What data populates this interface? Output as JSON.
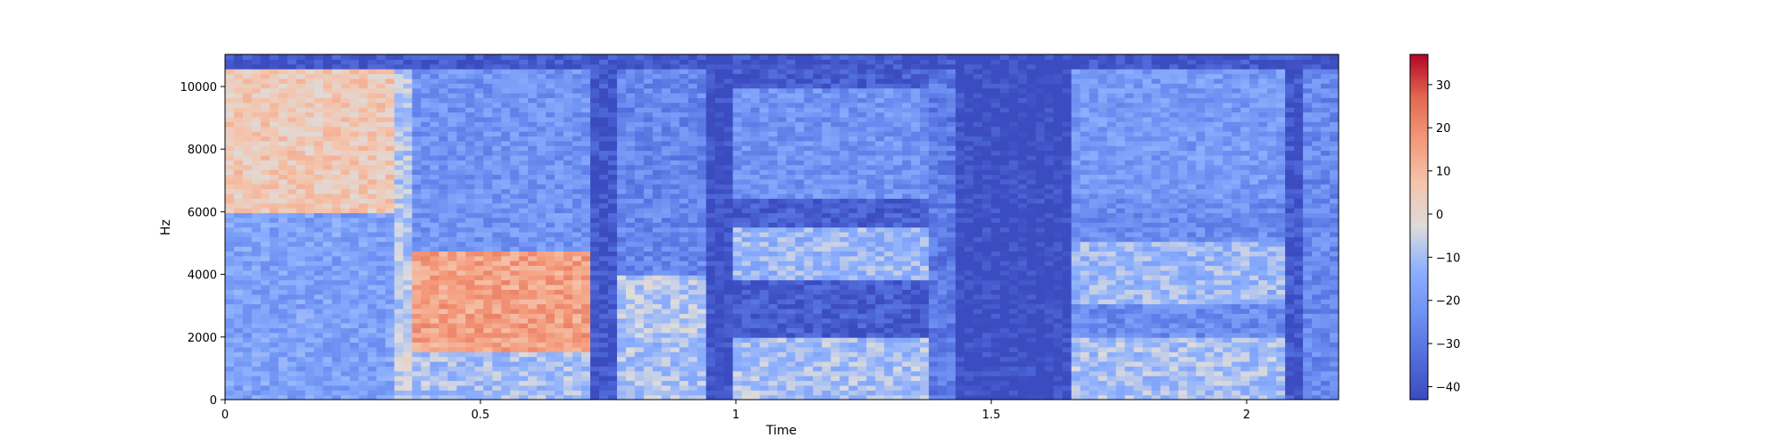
{
  "chart_data": {
    "type": "heatmap",
    "subtype": "spectrogram",
    "title": "",
    "xlabel": "Time",
    "ylabel": "Hz",
    "xlim": [
      0,
      2.18
    ],
    "ylim": [
      0,
      11025
    ],
    "x_ticks": [
      0,
      0.5,
      1,
      1.5,
      2
    ],
    "x_tick_labels": [
      "0",
      "0.5",
      "1",
      "1.5",
      "2"
    ],
    "y_ticks": [
      0,
      2000,
      4000,
      6000,
      8000,
      10000
    ],
    "y_tick_labels": [
      "0",
      "2000",
      "4000",
      "6000",
      "8000",
      "10000"
    ],
    "colorbar": {
      "colormap": "coolwarm",
      "range": [
        -43,
        37
      ],
      "ticks": [
        -40,
        -30,
        -20,
        -10,
        0,
        10,
        20,
        30
      ],
      "tick_labels": [
        "−40",
        "−30",
        "−20",
        "−10",
        "0",
        "10",
        "20",
        "30"
      ]
    },
    "grid": false,
    "segments": [
      {
        "t_start": 0.0,
        "t_end": 0.33,
        "level_db": -18,
        "low_band_level_db": -30,
        "high_band_hz": [
          6000,
          10500
        ],
        "high_band_level_db": 5
      },
      {
        "t_start": 0.33,
        "t_end": 0.37,
        "level_db": -8,
        "low_band_level_db": -5
      },
      {
        "t_start": 0.37,
        "t_end": 0.72,
        "level_db": -22,
        "mid_band_hz": [
          1500,
          4800
        ],
        "mid_band_level_db": 15,
        "harmonics": true
      },
      {
        "t_start": 0.72,
        "t_end": 0.76,
        "level_db": -40
      },
      {
        "t_start": 0.76,
        "t_end": 0.95,
        "level_db": -26,
        "mid_band_hz": [
          2000,
          4000
        ],
        "mid_band_level_db": -8,
        "harmonics": true
      },
      {
        "t_start": 0.95,
        "t_end": 1.0,
        "level_db": -42
      },
      {
        "t_start": 1.0,
        "t_end": 1.37,
        "level_db": -38,
        "mid_band_hz": [
          3800,
          5500
        ],
        "mid_band_level_db": -12,
        "high_band_hz": [
          6500,
          10000
        ],
        "high_band_level_db": -22,
        "harmonics": true
      },
      {
        "t_start": 1.37,
        "t_end": 1.43,
        "level_db": -30
      },
      {
        "t_start": 1.43,
        "t_end": 1.66,
        "level_db": -43
      },
      {
        "t_start": 1.66,
        "t_end": 2.07,
        "level_db": -24,
        "mid_band_hz": [
          3000,
          5000
        ],
        "mid_band_level_db": -12,
        "high_band_hz": [
          6500,
          10500
        ],
        "high_band_level_db": -20,
        "harmonics": true
      },
      {
        "t_start": 2.07,
        "t_end": 2.11,
        "level_db": -40
      },
      {
        "t_start": 2.11,
        "t_end": 2.18,
        "level_db": -25
      }
    ]
  }
}
